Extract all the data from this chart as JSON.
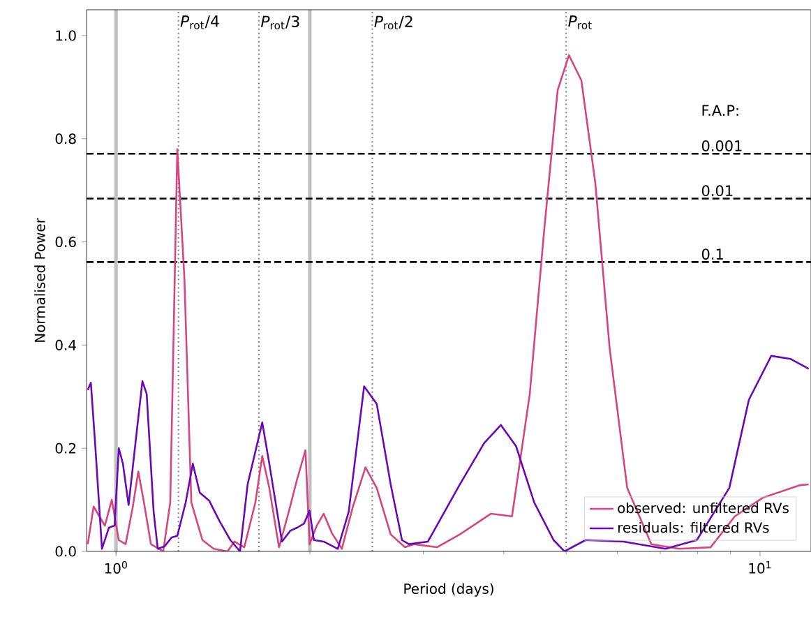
{
  "chart_data": {
    "type": "line",
    "xlabel": "Period (days)",
    "ylabel": "Normalised Power",
    "log": "x",
    "xlim": [
      0.9,
      12
    ],
    "ylim": [
      0,
      1.05
    ],
    "xticks": [
      {
        "value": 1,
        "label": "10$^{0}$"
      },
      {
        "value": 10,
        "label": "10$^{1}$"
      }
    ],
    "yticks": [
      {
        "value": 0,
        "label": "0.0"
      },
      {
        "value": 0.2,
        "label": "0.2"
      },
      {
        "value": 0.4,
        "label": "0.4"
      },
      {
        "value": 0.6,
        "label": "0.6"
      },
      {
        "value": 0.8,
        "label": "0.8"
      },
      {
        "value": 1.0,
        "label": "1.0"
      }
    ],
    "legend": "bottom right",
    "grid": false,
    "series": [
      {
        "name": "observed: unfiltered RVs",
        "color": "#d6457c",
        "x": [
          0.904,
          0.923,
          0.942,
          0.961,
          0.985,
          1.01,
          1.035,
          1.062,
          1.083,
          1.105,
          1.133,
          1.184,
          1.214,
          1.245,
          1.277,
          1.309,
          1.362,
          1.418,
          1.49,
          1.527,
          1.582,
          1.646,
          1.687,
          1.73,
          1.791,
          1.855,
          1.911,
          1.969,
          1.998,
          2.05,
          2.101,
          2.165,
          2.242,
          2.333,
          2.44,
          2.54,
          2.67,
          2.81,
          2.9,
          3.15,
          3.42,
          3.82,
          4.12,
          4.39,
          4.62,
          4.85,
          5.05,
          5.28,
          5.55,
          5.84,
          6.22,
          6.78,
          7.49,
          8.38,
          9.14,
          10.1,
          11.5,
          11.9
        ],
        "values": [
          0.014,
          0.087,
          0.068,
          0.05,
          0.1,
          0.022,
          0.014,
          0.087,
          0.155,
          0.095,
          0.014,
          0,
          0.095,
          0.78,
          0.53,
          0.095,
          0.022,
          0.005,
          0,
          0.019,
          0.008,
          0.095,
          0.185,
          0.123,
          0.008,
          0.077,
          0.14,
          0.196,
          0.014,
          0.05,
          0.073,
          0.035,
          0.005,
          0.087,
          0.163,
          0.123,
          0.033,
          0.008,
          0.014,
          0.008,
          0.033,
          0.073,
          0.068,
          0.305,
          0.62,
          0.894,
          0.962,
          0.913,
          0.714,
          0.395,
          0.123,
          0.014,
          0.005,
          0.008,
          0.068,
          0.104,
          0.128,
          0.13
        ]
      },
      {
        "name": "residuals: filtered RVs",
        "color": "#6a08b8",
        "x": [
          0.904,
          0.914,
          0.928,
          0.951,
          0.975,
          0.995,
          1.01,
          1.025,
          1.046,
          1.072,
          1.099,
          1.116,
          1.144,
          1.161,
          1.19,
          1.22,
          1.245,
          1.283,
          1.316,
          1.349,
          1.396,
          1.446,
          1.505,
          1.558,
          1.601,
          1.687,
          1.73,
          1.81,
          1.865,
          1.911,
          1.959,
          1.998,
          2.029,
          2.101,
          2.21,
          2.298,
          2.428,
          2.54,
          2.67,
          2.78,
          2.85,
          3.05,
          3.42,
          3.73,
          3.96,
          4.18,
          4.46,
          4.78,
          4.97,
          5.36,
          6.14,
          7.13,
          7.98,
          8.96,
          9.61,
          10.41,
          11.16,
          11.9
        ],
        "values": [
          0.313,
          0.327,
          0.21,
          0.005,
          0.046,
          0.05,
          0.2,
          0.17,
          0.09,
          0.21,
          0.33,
          0.305,
          0.077,
          0.005,
          0.01,
          0.027,
          0.03,
          0.095,
          0.17,
          0.114,
          0.098,
          0.06,
          0.022,
          0,
          0.13,
          0.25,
          0.17,
          0.019,
          0.04,
          0.046,
          0.054,
          0.079,
          0.022,
          0.019,
          0.005,
          0.077,
          0.32,
          0.286,
          0.13,
          0.022,
          0.014,
          0.019,
          0.13,
          0.21,
          0.245,
          0.204,
          0.095,
          0.022,
          0,
          0.022,
          0.019,
          0.005,
          0.022,
          0.123,
          0.294,
          0.379,
          0.373,
          0.354
        ]
      }
    ],
    "ref_lines": [
      {
        "axis": "x",
        "value": 1,
        "color": "#bfbfbf",
        "line_style": "solid"
      },
      {
        "axis": "x",
        "value": 2,
        "color": "#bfbfbf",
        "line_style": "solid"
      },
      {
        "axis": "x",
        "value": 1.25,
        "label": "*P*$_{rot}$/4",
        "color": "#808080",
        "line_style": "dotted"
      },
      {
        "axis": "x",
        "value": 1.667,
        "label": "*P*$_{rot}$/3",
        "color": "#808080",
        "line_style": "dotted"
      },
      {
        "axis": "x",
        "value": 2.5,
        "label": "*P*$_{rot}$/2",
        "color": "#808080",
        "line_style": "dotted"
      },
      {
        "axis": "x",
        "value": 5,
        "label": "*P*$_{rot}$",
        "color": "#808080",
        "line_style": "dotted"
      },
      {
        "axis": "y",
        "value": 0.771,
        "color": "#000000",
        "line_style": "dashed"
      },
      {
        "axis": "y",
        "value": 0.684,
        "color": "#000000",
        "line_style": "dashed"
      },
      {
        "axis": "y",
        "value": 0.561,
        "color": "#000000",
        "line_style": "dashed"
      }
    ],
    "annotations": [
      "F.A.P:",
      {
        "text": "0.001",
        "y": 0.771
      },
      {
        "text": "0.01",
        "y": 0.684
      },
      {
        "text": "0.1",
        "y": 0.561
      }
    ]
  }
}
